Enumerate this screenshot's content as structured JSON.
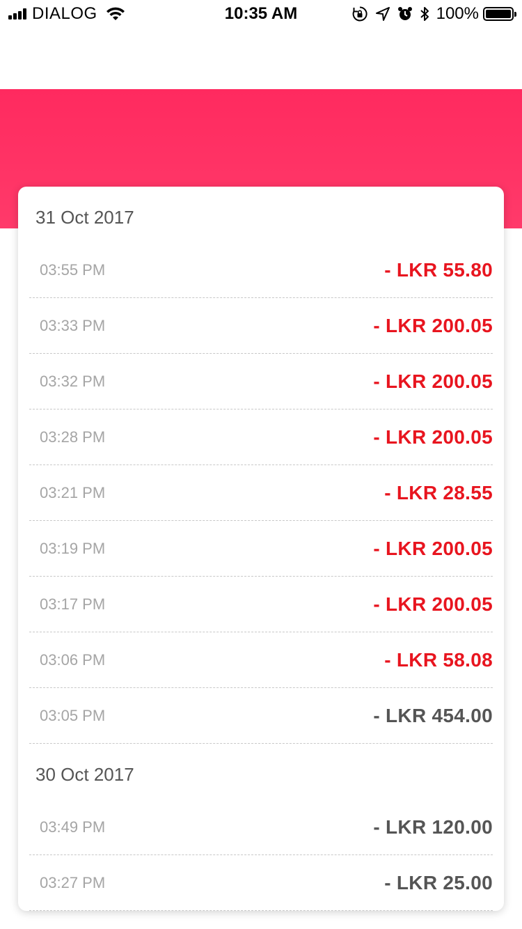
{
  "status_bar": {
    "carrier": "DIALOG",
    "time": "10:35 AM",
    "battery_percent": "100%"
  },
  "colors": {
    "banner": "#ff2a5f",
    "debit_red": "#e8151f",
    "amount_gray": "#555555"
  },
  "groups": [
    {
      "date": "31 Oct 2017",
      "transactions": [
        {
          "time": "03:55 PM",
          "amount": "- LKR 55.80",
          "color": "red"
        },
        {
          "time": "03:33 PM",
          "amount": "- LKR 200.05",
          "color": "red"
        },
        {
          "time": "03:32 PM",
          "amount": "- LKR 200.05",
          "color": "red"
        },
        {
          "time": "03:28 PM",
          "amount": "- LKR 200.05",
          "color": "red"
        },
        {
          "time": "03:21 PM",
          "amount": "- LKR 28.55",
          "color": "red"
        },
        {
          "time": "03:19 PM",
          "amount": "- LKR 200.05",
          "color": "red"
        },
        {
          "time": "03:17 PM",
          "amount": "- LKR 200.05",
          "color": "red"
        },
        {
          "time": "03:06 PM",
          "amount": "- LKR 58.08",
          "color": "red"
        },
        {
          "time": "03:05 PM",
          "amount": "- LKR 454.00",
          "color": "gray"
        }
      ]
    },
    {
      "date": "30 Oct 2017",
      "transactions": [
        {
          "time": "03:49 PM",
          "amount": "- LKR 120.00",
          "color": "gray"
        },
        {
          "time": "03:27 PM",
          "amount": "- LKR 25.00",
          "color": "gray"
        }
      ]
    }
  ]
}
